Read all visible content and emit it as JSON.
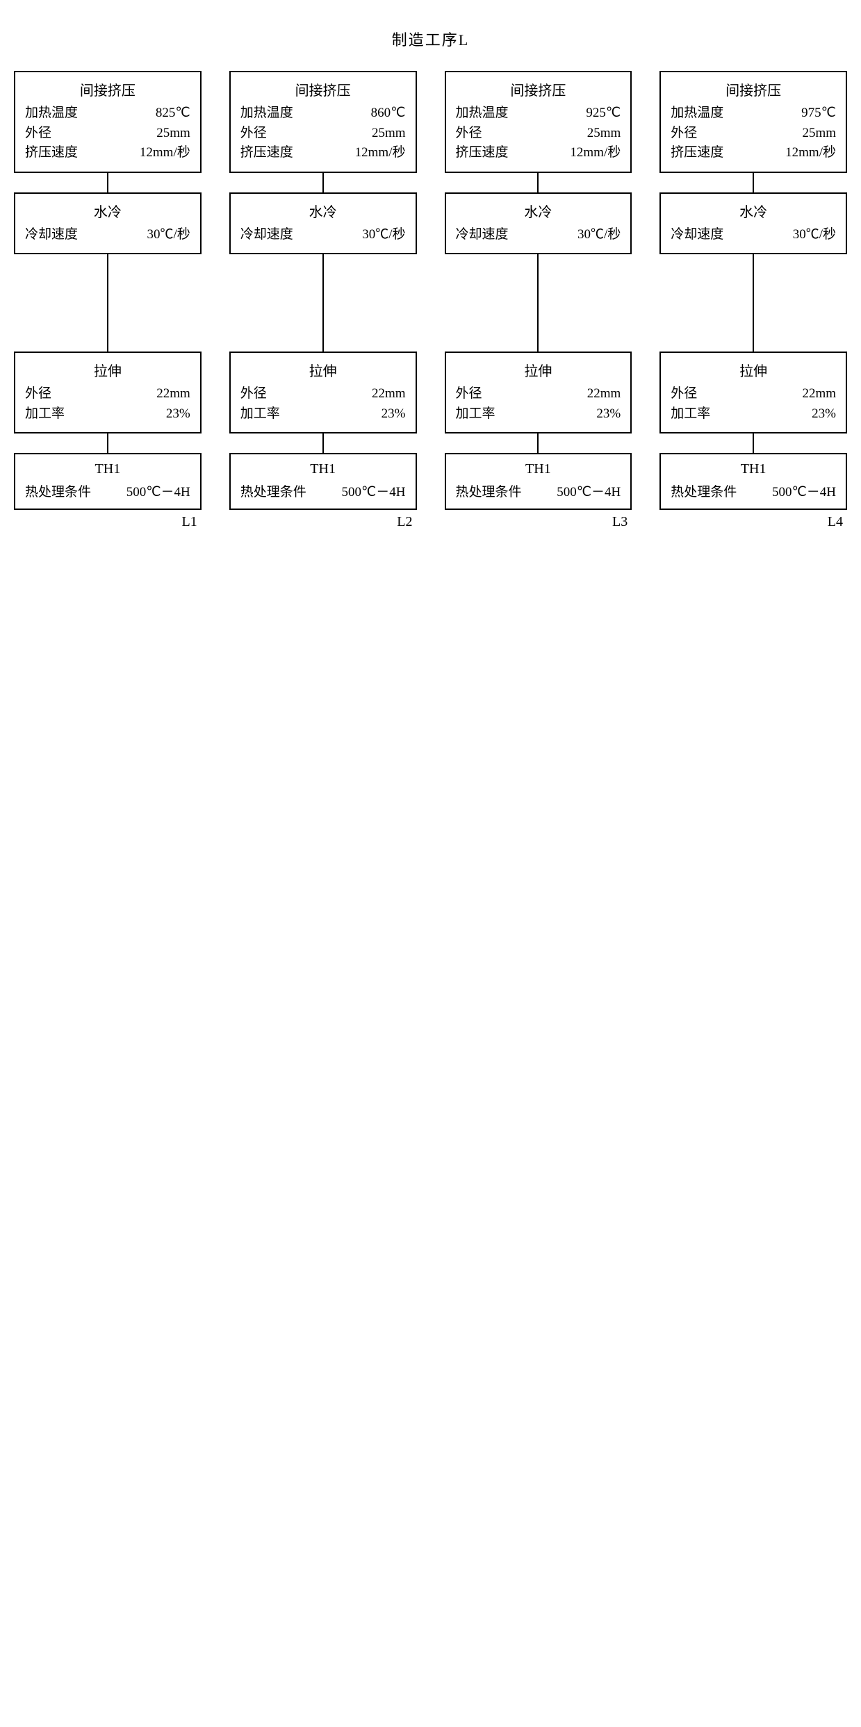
{
  "title": "制造工序L",
  "labels": {
    "extrusion_title": "间接挤压",
    "heating_temp": "加热温度",
    "outer_dia": "外径",
    "extrusion_speed": "挤压速度",
    "water_cool_title": "水冷",
    "cooling_rate": "冷却速度",
    "drawing_title": "拉伸",
    "processing_rate": "加工率",
    "th_title": "TH1",
    "th_cond": "热处理条件"
  },
  "common": {
    "outer_dia_extrusion": "25mm",
    "extrusion_speed": "12mm/秒",
    "cooling_rate": "30℃/秒",
    "outer_dia_drawing": "22mm",
    "processing_rate": "23%",
    "th_cond_value": "500℃－4H"
  },
  "columns": [
    {
      "id": "L1",
      "heating_temp": "825℃"
    },
    {
      "id": "L2",
      "heating_temp": "860℃"
    },
    {
      "id": "L3",
      "heating_temp": "925℃"
    },
    {
      "id": "L4",
      "heating_temp": "975℃"
    }
  ],
  "style": {
    "border_color": "#000000",
    "bg": "#ffffff",
    "font_size_title": 22,
    "font_size_box_title": 20,
    "font_size_text": 19
  }
}
